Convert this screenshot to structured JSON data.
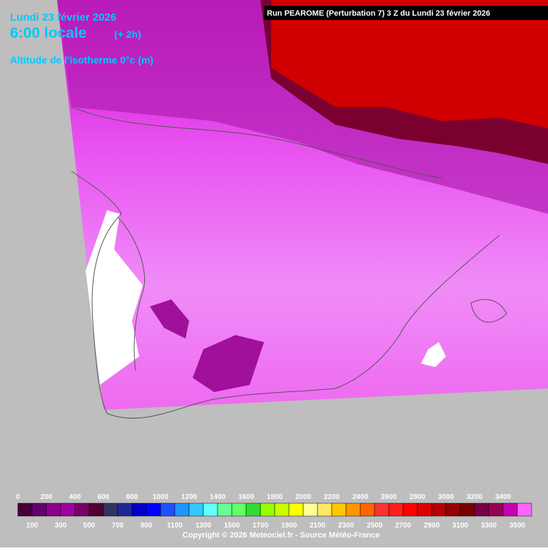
{
  "header": {
    "date": "Lundi 23 février 2026",
    "time": "6:00 locale",
    "offset": "(+ 2h)",
    "parameter": "Altitude de l'isotherme 0°c (m)",
    "run": "Run PEAROME (Perturbation 7) 3 Z du Lundi 23 février 2026"
  },
  "legend": {
    "labels_top": [
      0,
      200,
      400,
      600,
      800,
      1000,
      1200,
      1400,
      1600,
      1800,
      2000,
      2200,
      2400,
      2600,
      2800,
      3000,
      3200,
      3400
    ],
    "labels_bottom": [
      100,
      300,
      500,
      700,
      900,
      1100,
      1300,
      1500,
      1700,
      1900,
      2100,
      2300,
      2500,
      2700,
      2900,
      3100,
      3300,
      3500
    ],
    "colors": [
      "#46003c",
      "#64006e",
      "#8c008c",
      "#a000a0",
      "#780064",
      "#500032",
      "#323264",
      "#1e2896",
      "#0000c8",
      "#0000ff",
      "#1e50ff",
      "#1e96ff",
      "#32c8ff",
      "#64ffff",
      "#64ff96",
      "#64ff64",
      "#32dc32",
      "#96ff00",
      "#c8ff00",
      "#ffff00",
      "#ffff96",
      "#ffe664",
      "#ffc800",
      "#ff9600",
      "#ff6400",
      "#ff3232",
      "#ff1e1e",
      "#ff0000",
      "#dc0000",
      "#b40000",
      "#960000",
      "#780000",
      "#780046",
      "#96005a",
      "#c800b4",
      "#ff64ff"
    ]
  },
  "footer": {
    "copyright": "Copyright © 2026 Meteociel.fr - Source Météo-France"
  }
}
